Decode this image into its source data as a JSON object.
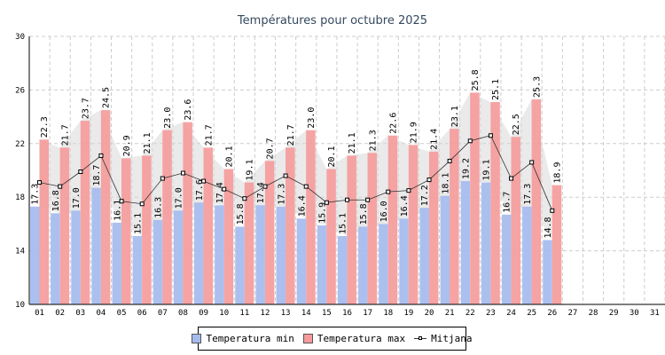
{
  "chart_data": {
    "type": "bar",
    "title": "Températures pour octubre 2025",
    "xlabel": "",
    "ylabel": "",
    "ylim": [
      10,
      30
    ],
    "yticks": [
      10,
      14,
      18,
      22,
      26,
      30
    ],
    "grid": true,
    "legend_position": "bottom-center",
    "categories": [
      "01",
      "02",
      "03",
      "04",
      "05",
      "06",
      "07",
      "08",
      "09",
      "10",
      "11",
      "12",
      "13",
      "14",
      "15",
      "16",
      "17",
      "18",
      "19",
      "20",
      "21",
      "22",
      "23",
      "24",
      "25",
      "26",
      "27",
      "28",
      "29",
      "30",
      "31"
    ],
    "series": [
      {
        "name": "Temperatura min",
        "kind": "bar",
        "color": "#a4bbee",
        "values": [
          17.3,
          16.8,
          17.0,
          18.7,
          16.1,
          15.1,
          16.3,
          17.0,
          17.6,
          17.4,
          15.8,
          17.4,
          17.3,
          16.4,
          15.9,
          15.1,
          15.8,
          16.0,
          16.4,
          17.2,
          18.1,
          19.2,
          19.1,
          16.7,
          17.3,
          14.8,
          null,
          null,
          null,
          null,
          null
        ]
      },
      {
        "name": "Temperatura max",
        "kind": "bar",
        "color": "#f59b9b",
        "values": [
          22.3,
          21.7,
          23.7,
          24.5,
          20.9,
          21.1,
          23.0,
          23.6,
          21.7,
          20.1,
          19.1,
          20.7,
          21.7,
          23.0,
          20.1,
          21.1,
          21.3,
          22.6,
          21.9,
          21.4,
          23.1,
          25.8,
          25.1,
          22.5,
          25.3,
          18.9,
          null,
          null,
          null,
          null,
          null
        ]
      },
      {
        "name": "Mitjana",
        "kind": "line",
        "color": "#333333",
        "values": [
          19.1,
          18.8,
          19.9,
          21.1,
          17.7,
          17.5,
          19.4,
          19.8,
          19.2,
          18.6,
          17.9,
          18.8,
          19.6,
          18.8,
          17.6,
          17.8,
          17.8,
          18.4,
          18.5,
          19.3,
          20.7,
          22.2,
          22.6,
          19.4,
          20.6,
          17.0,
          null,
          null,
          null,
          null,
          null
        ]
      }
    ]
  }
}
